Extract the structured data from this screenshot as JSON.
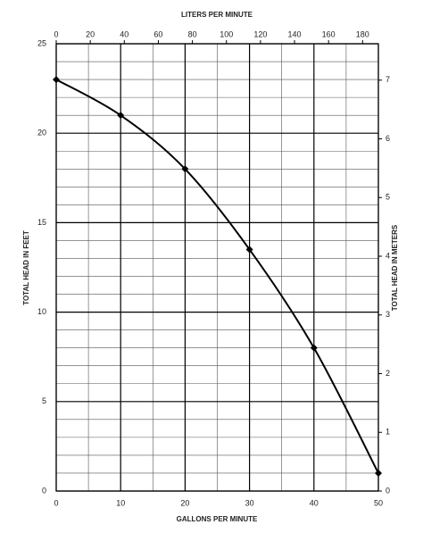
{
  "chart_data": {
    "type": "line",
    "xlabel": "GALLONS PER MINUTE",
    "ylabel": "TOTAL HEAD IN FEET",
    "x2label": "LITERS PER MINUTE",
    "y2label": "TOTAL HEAD IN METERS",
    "x": [
      0,
      10,
      20,
      30,
      40,
      50
    ],
    "values": [
      23,
      21,
      18,
      13.5,
      8,
      1
    ],
    "color": "#000000",
    "xlim": [
      0,
      50
    ],
    "xticks": [
      0,
      10,
      20,
      30,
      40,
      50
    ],
    "x_minor_ticks": [
      5,
      15,
      25,
      35,
      45
    ],
    "ylim": [
      0,
      25
    ],
    "yticks": [
      0,
      5,
      10,
      15,
      20,
      25
    ],
    "y_minor_ticks": [
      1,
      2,
      3,
      4,
      6,
      7,
      8,
      9,
      11,
      12,
      13,
      14,
      16,
      17,
      18,
      19,
      21,
      22,
      23,
      24
    ],
    "x2lim": [
      0,
      189.27
    ],
    "x2ticks": [
      0,
      20,
      40,
      60,
      80,
      100,
      120,
      140,
      160,
      180
    ],
    "y2lim": [
      0,
      7.62
    ],
    "y2ticks": [
      0,
      1,
      2,
      3,
      4,
      5,
      6,
      7
    ],
    "grid": true
  }
}
